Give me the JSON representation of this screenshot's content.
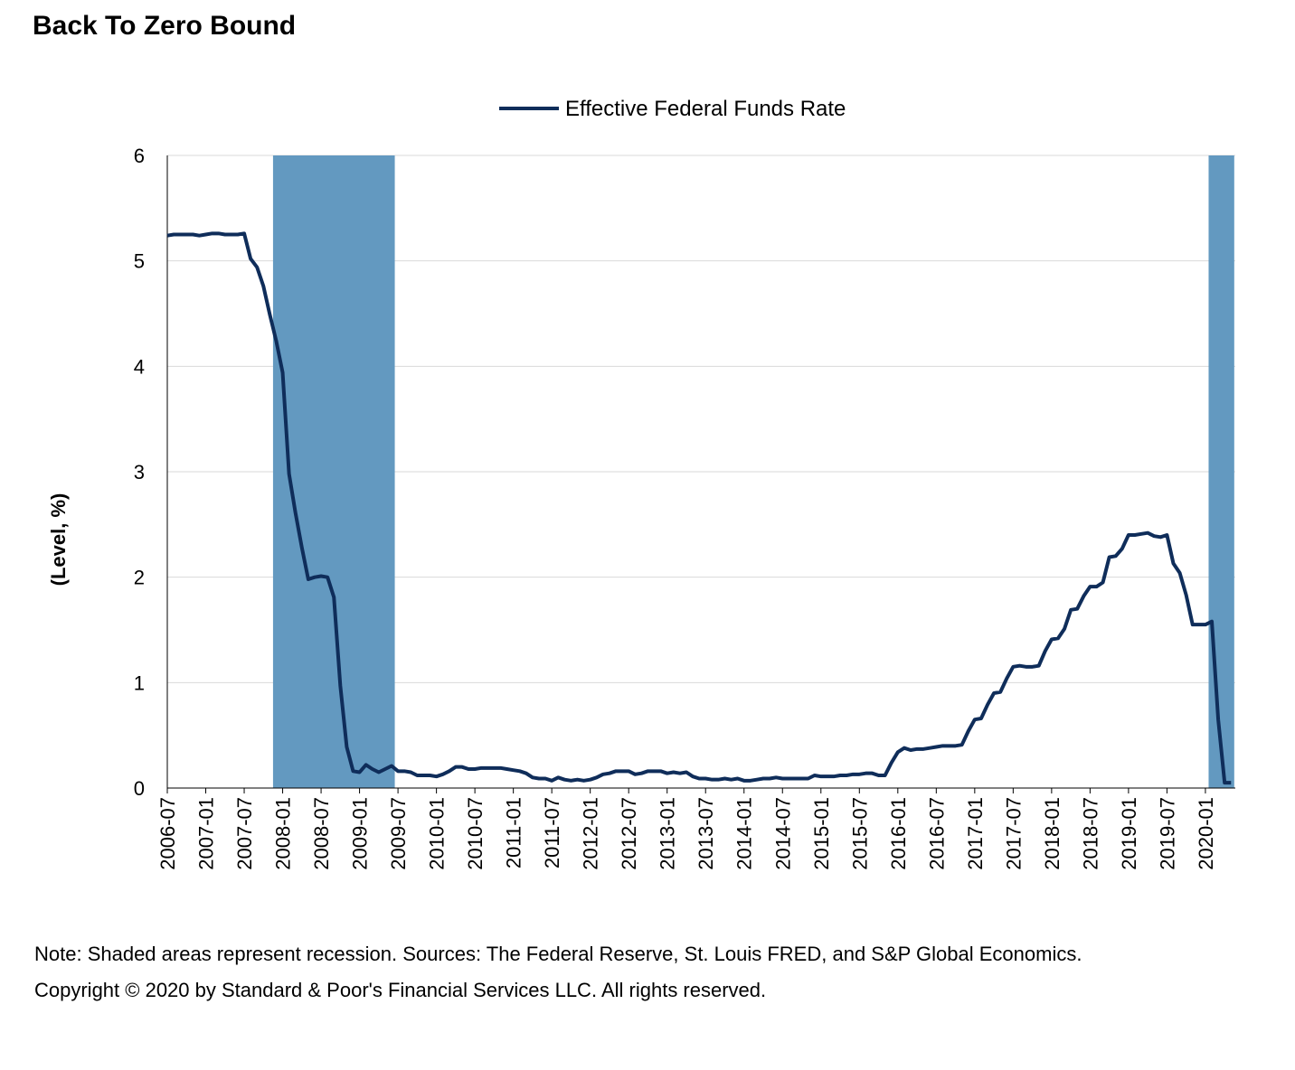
{
  "chart_data": {
    "type": "line",
    "title": "Back To Zero Bound",
    "y_label": "(Level, %)",
    "note": "Note: Shaded areas represent recession. Sources: The Federal Reserve, St. Louis FRED, and S&P Global Economics.",
    "copyright": "Copyright © 2020 by Standard & Poor's Financial Services LLC. All rights reserved.",
    "categories": [
      "2006-07",
      null,
      null,
      null,
      null,
      null,
      "2007-01",
      null,
      null,
      null,
      null,
      null,
      "2007-07",
      null,
      null,
      null,
      null,
      null,
      "2008-01",
      null,
      null,
      null,
      null,
      null,
      "2008-07",
      null,
      null,
      null,
      null,
      null,
      "2009-01",
      null,
      null,
      null,
      null,
      null,
      "2009-07",
      null,
      null,
      null,
      null,
      null,
      "2010-01",
      null,
      null,
      null,
      null,
      null,
      "2010-07",
      null,
      null,
      null,
      null,
      null,
      "2011-01",
      null,
      null,
      null,
      null,
      null,
      "2011-07",
      null,
      null,
      null,
      null,
      null,
      "2012-01",
      null,
      null,
      null,
      null,
      null,
      "2012-07",
      null,
      null,
      null,
      null,
      null,
      "2013-01",
      null,
      null,
      null,
      null,
      null,
      "2013-07",
      null,
      null,
      null,
      null,
      null,
      "2014-01",
      null,
      null,
      null,
      null,
      null,
      "2014-07",
      null,
      null,
      null,
      null,
      null,
      "2015-01",
      null,
      null,
      null,
      null,
      null,
      "2015-07",
      null,
      null,
      null,
      null,
      null,
      "2016-01",
      null,
      null,
      null,
      null,
      null,
      "2016-07",
      null,
      null,
      null,
      null,
      null,
      "2017-01",
      null,
      null,
      null,
      null,
      null,
      "2017-07",
      null,
      null,
      null,
      null,
      null,
      "2018-01",
      null,
      null,
      null,
      null,
      null,
      "2018-07",
      null,
      null,
      null,
      null,
      null,
      "2019-01",
      null,
      null,
      null,
      null,
      null,
      "2019-07",
      null,
      null,
      null,
      null,
      null,
      "2020-01",
      null,
      null,
      null,
      null
    ],
    "series": [
      {
        "name": "Effective Federal Funds Rate",
        "color": "#0f2d5a",
        "values": [
          5.24,
          5.25,
          5.25,
          5.25,
          5.25,
          5.24,
          5.25,
          5.26,
          5.26,
          5.25,
          5.25,
          5.25,
          5.26,
          5.02,
          4.94,
          4.76,
          4.49,
          4.24,
          3.94,
          2.98,
          2.61,
          2.28,
          1.98,
          2.0,
          2.01,
          2.0,
          1.81,
          0.97,
          0.39,
          0.16,
          0.15,
          0.22,
          0.18,
          0.15,
          0.18,
          0.21,
          0.16,
          0.16,
          0.15,
          0.12,
          0.12,
          0.12,
          0.11,
          0.13,
          0.16,
          0.2,
          0.2,
          0.18,
          0.18,
          0.19,
          0.19,
          0.19,
          0.19,
          0.18,
          0.17,
          0.16,
          0.14,
          0.1,
          0.09,
          0.09,
          0.07,
          0.1,
          0.08,
          0.07,
          0.08,
          0.07,
          0.08,
          0.1,
          0.13,
          0.14,
          0.16,
          0.16,
          0.16,
          0.13,
          0.14,
          0.16,
          0.16,
          0.16,
          0.14,
          0.15,
          0.14,
          0.15,
          0.11,
          0.09,
          0.09,
          0.08,
          0.08,
          0.09,
          0.08,
          0.09,
          0.07,
          0.07,
          0.08,
          0.09,
          0.09,
          0.1,
          0.09,
          0.09,
          0.09,
          0.09,
          0.09,
          0.12,
          0.11,
          0.11,
          0.11,
          0.12,
          0.12,
          0.13,
          0.13,
          0.14,
          0.14,
          0.12,
          0.12,
          0.24,
          0.34,
          0.38,
          0.36,
          0.37,
          0.37,
          0.38,
          0.39,
          0.4,
          0.4,
          0.4,
          0.41,
          0.54,
          0.65,
          0.66,
          0.79,
          0.9,
          0.91,
          1.04,
          1.15,
          1.16,
          1.15,
          1.15,
          1.16,
          1.3,
          1.41,
          1.42,
          1.51,
          1.69,
          1.7,
          1.82,
          1.91,
          1.91,
          1.95,
          2.19,
          2.2,
          2.27,
          2.4,
          2.4,
          2.41,
          2.42,
          2.39,
          2.38,
          2.4,
          2.13,
          2.04,
          1.83,
          1.55,
          1.55,
          1.55,
          1.58,
          0.65,
          0.05,
          0.05
        ]
      }
    ],
    "shaded": [
      {
        "start": 17,
        "end": 35
      },
      {
        "start": 163,
        "end": 166
      }
    ],
    "shade_color": "#6399c0",
    "ylim": [
      0,
      6
    ],
    "yticks": [
      0,
      1,
      2,
      3,
      4,
      5,
      6
    ],
    "grid": true
  }
}
